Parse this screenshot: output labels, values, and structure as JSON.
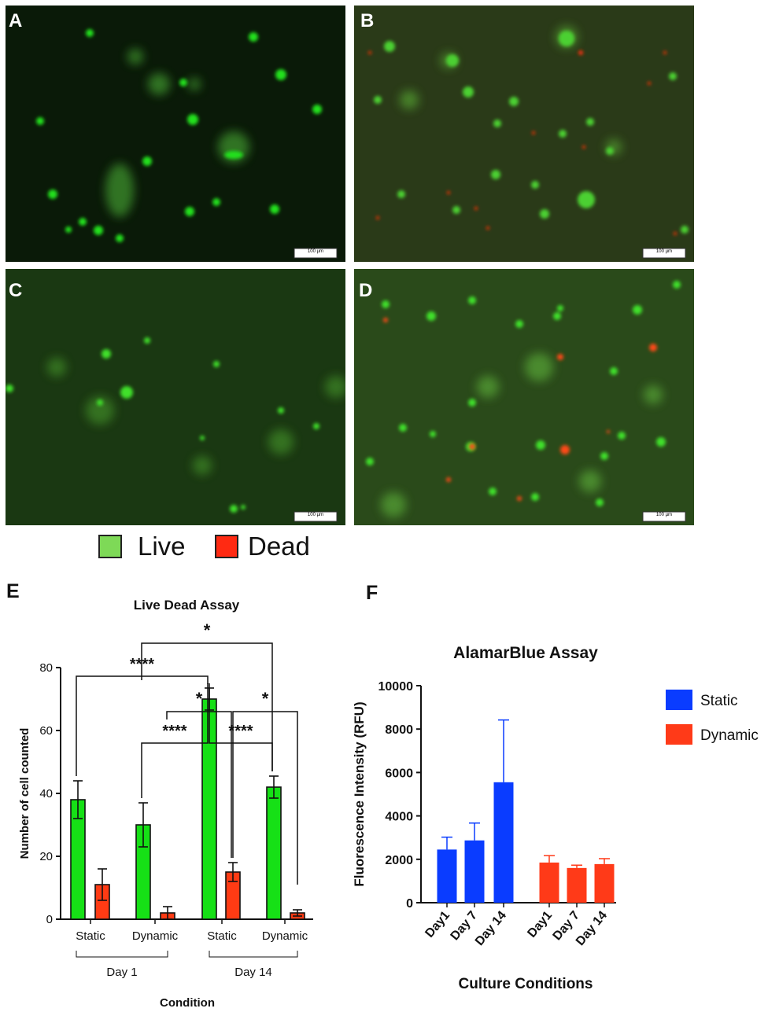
{
  "panels": {
    "A": {
      "label": "A",
      "scale": "100 µm"
    },
    "B": {
      "label": "B",
      "scale": "100 µm"
    },
    "C": {
      "label": "C",
      "scale": "100 µm"
    },
    "D": {
      "label": "D",
      "scale": "100 µm"
    }
  },
  "legend": {
    "live": {
      "label": "Live",
      "color": "#7ed957"
    },
    "dead": {
      "label": "Dead",
      "color": "#ff2a12"
    }
  },
  "chart_labels": {
    "E": "E",
    "F": "F"
  },
  "chart_data": [
    {
      "type": "bar",
      "title": "Live Dead Assay",
      "xlabel": "Condition",
      "ylabel": "Number of cell counted",
      "ylim": [
        0,
        80
      ],
      "yticks": [
        "0",
        "20",
        "40",
        "60",
        "80"
      ],
      "categories": [
        "Static",
        "Dynamic",
        "Static",
        "Dynamic"
      ],
      "groups": [
        {
          "label": "Day 1"
        },
        {
          "label": "Day 14"
        }
      ],
      "series": [
        {
          "name": "Live",
          "color": "#16e016",
          "values": [
            38,
            30,
            70,
            42
          ],
          "errors": [
            6,
            7,
            3.5,
            3.5
          ]
        },
        {
          "name": "Dead",
          "color": "#ff3b14",
          "values": [
            11,
            2,
            15,
            2
          ],
          "errors": [
            5,
            2,
            3,
            1
          ]
        }
      ],
      "significance": [
        "*",
        "****",
        "*",
        "*",
        "****",
        "****"
      ]
    },
    {
      "type": "bar",
      "title": "AlamarBlue Assay",
      "xlabel": "Culture Conditions",
      "ylabel": "Fluorescence Intensity (RFU)",
      "ylim": [
        0,
        10000
      ],
      "yticks": [
        "0",
        "2000",
        "4000",
        "6000",
        "8000",
        "10000"
      ],
      "categories": [
        "Day1",
        "Day 7",
        "Day 14"
      ],
      "series": [
        {
          "name": "Static",
          "color": "#0a3cff",
          "values": [
            2450,
            2870,
            5550
          ],
          "errors": [
            570,
            800,
            2870
          ]
        },
        {
          "name": "Dynamic",
          "color": "#ff3a18",
          "values": [
            1850,
            1600,
            1780
          ],
          "errors": [
            320,
            130,
            250
          ]
        }
      ]
    }
  ]
}
